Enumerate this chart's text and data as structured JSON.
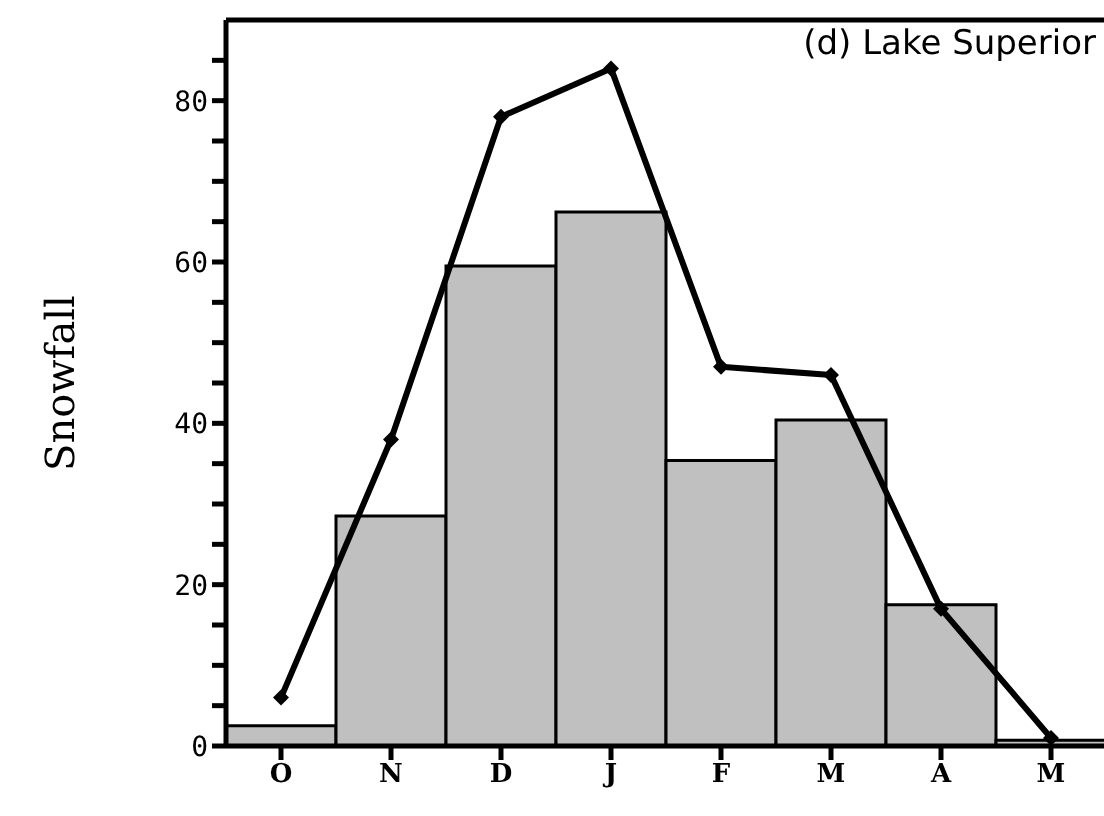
{
  "chart_data": {
    "type": "bar",
    "title": "(d) Lake Superior",
    "ylabel": "Snowfall",
    "categories": [
      "O",
      "N",
      "D",
      "J",
      "F",
      "M",
      "A",
      "M"
    ],
    "series": [
      {
        "color": "#c0c0c0",
        "values": [
          2.5,
          28.5,
          59.5,
          66.2,
          35.4,
          40.4,
          17.5,
          0.7
        ]
      },
      {
        "type": "line",
        "color": "#000000",
        "values": [
          6,
          38,
          78,
          84,
          47,
          46,
          17,
          1
        ]
      }
    ],
    "ylim": [
      0,
      90
    ],
    "yticks": [
      0,
      {
        "value": 5,
        "label": null
      },
      {
        "value": 10,
        "label": null
      },
      {
        "value": 15,
        "label": null
      },
      20,
      {
        "value": 25,
        "label": null
      },
      {
        "value": 30,
        "label": null
      },
      {
        "value": 35,
        "label": null
      },
      40,
      {
        "value": 45,
        "label": null
      },
      {
        "value": 50,
        "label": null
      },
      {
        "value": 55,
        "label": null
      },
      60,
      {
        "value": 65,
        "label": null
      },
      {
        "value": 70,
        "label": null
      },
      {
        "value": 75,
        "label": null
      },
      80,
      {
        "value": 85,
        "label": null
      }
    ],
    "marker": "diamond",
    "line_style": "solid"
  }
}
